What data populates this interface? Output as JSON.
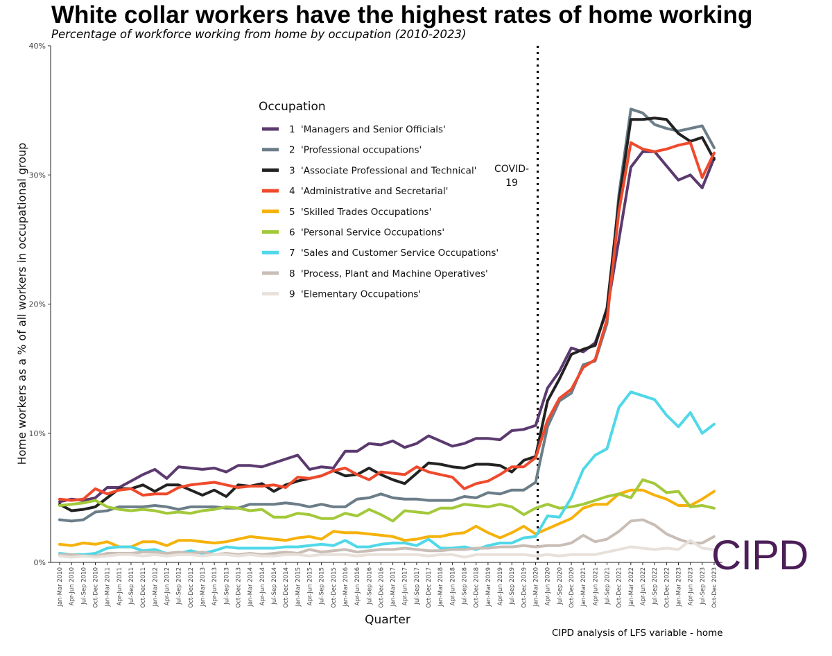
{
  "chart_data": {
    "type": "line",
    "title": "White collar workers have the highest rates of home working",
    "subtitle": "Percentage of workforce working from home by occupation (2010-2023)",
    "xlabel": "Quarter",
    "ylabel": "Home workers as a % of all workers in occupational group",
    "ylim": [
      0,
      40
    ],
    "yticks": [
      0,
      10,
      20,
      30,
      40
    ],
    "yticks_labels": [
      "0%",
      "10%",
      "20%",
      "30%",
      "40%"
    ],
    "source": "CIPD analysis of LFS variable - home",
    "logo": "CIPD",
    "legend_title": "Occupation",
    "legend_position": "upper-center",
    "annotation": {
      "lines": [
        "COVID-",
        "19"
      ],
      "x_index": 40
    },
    "x": [
      "Jan-Mar 2010",
      "Apr-Jun 2010",
      "Jul-Sep 2010",
      "Oct-Dec 2010",
      "Jan-Mar 2011",
      "Apr-Jun 2011",
      "Jul-Sep 2011",
      "Oct-Dec 2011",
      "Jan-Mar 2012",
      "Apr-Jun 2012",
      "Jul-Sep 2012",
      "Oct-Dec 2012",
      "Jan-Mar 2013",
      "Apr-Jun 2013",
      "Jul-Sep 2013",
      "Oct-Dec 2013",
      "Jan-Mar 2014",
      "Apr-Jun 2014",
      "Jul-Sep 2014",
      "Oct-Dec 2014",
      "Jan-Mar 2015",
      "Apr-Jun 2015",
      "Jul-Sep 2015",
      "Oct-Dec 2015",
      "Jan-Mar 2016",
      "Apr-Jun 2016",
      "Jul-Sep 2016",
      "Oct-Dec 2016",
      "Jan-Mar 2017",
      "Apr-Jun 2017",
      "Jul-Sep 2017",
      "Oct-Dec 2017",
      "Jan-Mar 2018",
      "Apr-Jun 2018",
      "Jul-Sep 2018",
      "Oct-Dec 2018",
      "Jan-Mar 2019",
      "Apr-Jun 2019",
      "Jul-Sep 2019",
      "Oct-Dec 2019",
      "Jan-Mar 2020",
      "Apr-Jun 2020",
      "Jul-Sep 2020",
      "Oct-Dec 2020",
      "Jan-Mar 2021",
      "Apr-Jun 2021",
      "Jul-Sep 2021",
      "Oct-Dec 2021",
      "Jan-Mar 2022",
      "Apr-Jun 2022",
      "Jul-Sep 2022",
      "Oct-Dec 2022",
      "Jan-Mar 2023",
      "Apr-Jun 2023",
      "Jul-Sep 2023",
      "Oct-Dec 2023"
    ],
    "x_tick_labels": [
      "Jan-Mar 2010",
      "Apr-Jun 2010",
      "Jul-Sep 2010",
      "Oct-Dec 2010",
      "Jan-Mar 2011",
      "Apr-Jun 2011",
      "Jul-Sep 2011",
      "Oct-Dec 2011",
      "Jan-Mar 2012",
      "Apr-Jun 2012",
      "Jul-Sep 2012",
      "Oct-Dec 2012",
      "Jan-Mar 2013",
      "Apr-Jun 2013",
      "Jul-Sep 2013",
      "Oct-Dec 2013",
      "Jan-Mar 2014",
      "Apr-Jun 2014",
      "Jul-Sep 2014",
      "Oct-Dec 2014",
      "Jan-Mar 2015",
      "Apr-Jun 2015",
      "Jul-Sep 2015",
      "Oct-Dec 2015",
      "Jan-Mar 2016",
      "Apr-Jun 2016",
      "Jul-Sep 2016",
      "Oct-Dec 2016",
      "Jan-Mar 2017",
      "Apr-Jun 2017",
      "Jul-Sep 2017",
      "Oct-Dec 2017",
      "Jan-Mar 2018",
      "Apr-Jun 2018",
      "Jul-Sep 2018",
      "Oct-Dec 2018",
      "Jan-Mar 2019",
      "Apr-Jun 2019",
      "Jul-Sep 2019",
      "Oct-Dec 2019",
      "Jan-Mar 2020",
      "Apr-Jun 2020",
      "Jul-Sep 2020",
      "Oct-Dec 2020",
      "Jan-Mar 2021",
      "Apr-Jun 2021",
      "Jul-Sep 2021",
      "Oct-Dec 2021",
      "Jan-Mar 2022",
      "Apr-Jun 2022",
      "Jul-Sep 2022",
      "Oct-Dec 2022",
      "Jan-Mar 2023",
      "Apr-Jun 2023",
      "Jul-Sep 2023",
      "Oct-Dec 2023"
    ],
    "series": [
      {
        "legend_num": "1",
        "name": "'Managers and Senior Officials'",
        "color": "#5b3a6f",
        "values": [
          4.7,
          4.9,
          4.8,
          5.0,
          5.8,
          5.8,
          6.3,
          6.8,
          7.2,
          6.5,
          7.4,
          7.3,
          7.2,
          7.3,
          7.0,
          7.5,
          7.5,
          7.4,
          7.7,
          8.0,
          8.3,
          7.2,
          7.4,
          7.3,
          8.6,
          8.6,
          9.2,
          9.1,
          9.4,
          8.9,
          9.2,
          9.8,
          9.4,
          9.0,
          9.2,
          9.6,
          9.6,
          9.5,
          10.2,
          10.3,
          10.6,
          13.5,
          14.8,
          16.6,
          16.3,
          17.0,
          19.5,
          25.0,
          30.6,
          31.8,
          31.8,
          30.7,
          29.6,
          30.0,
          29.0,
          31.3
        ]
      },
      {
        "legend_num": "2",
        "name": "'Professional occupations'",
        "color": "#6b7d88",
        "values": [
          3.3,
          3.2,
          3.3,
          3.9,
          4.0,
          4.3,
          4.3,
          4.3,
          4.4,
          4.3,
          4.1,
          4.3,
          4.3,
          4.3,
          4.2,
          4.2,
          4.5,
          4.5,
          4.5,
          4.6,
          4.5,
          4.3,
          4.5,
          4.3,
          4.3,
          4.9,
          5.0,
          5.3,
          5.0,
          4.9,
          4.9,
          4.8,
          4.8,
          4.8,
          5.1,
          5.0,
          5.4,
          5.3,
          5.6,
          5.6,
          6.2,
          10.5,
          12.5,
          13.1,
          15.3,
          15.6,
          18.5,
          28.5,
          35.1,
          34.8,
          33.9,
          33.6,
          33.4,
          33.6,
          33.8,
          32.1
        ]
      },
      {
        "legend_num": "3",
        "name": "'Associate Professional and Technical'",
        "color": "#222222",
        "values": [
          4.5,
          4.0,
          4.1,
          4.3,
          5.0,
          5.7,
          5.7,
          6.0,
          5.5,
          6.0,
          6.0,
          5.6,
          5.2,
          5.6,
          5.1,
          6.0,
          5.9,
          6.1,
          5.5,
          6.0,
          6.3,
          6.5,
          6.7,
          7.1,
          6.7,
          6.8,
          7.3,
          6.8,
          6.4,
          6.1,
          6.9,
          7.7,
          7.6,
          7.4,
          7.3,
          7.6,
          7.6,
          7.5,
          7.0,
          7.9,
          8.2,
          12.5,
          14.2,
          16.1,
          16.5,
          16.8,
          19.7,
          28.0,
          34.3,
          34.3,
          34.4,
          34.3,
          33.2,
          32.6,
          32.9,
          31.2
        ]
      },
      {
        "legend_num": "4",
        "name": "'Administrative and Secretarial'",
        "color": "#ef4a2d",
        "values": [
          4.9,
          4.8,
          4.9,
          5.7,
          5.3,
          5.6,
          5.7,
          5.2,
          5.3,
          5.3,
          5.8,
          6.0,
          6.1,
          6.2,
          6.0,
          5.8,
          5.9,
          5.9,
          6.0,
          5.8,
          6.6,
          6.5,
          6.7,
          7.1,
          7.3,
          6.8,
          6.4,
          7.0,
          6.9,
          6.8,
          7.4,
          7.0,
          6.8,
          6.6,
          5.7,
          6.1,
          6.3,
          6.8,
          7.4,
          7.4,
          8.1,
          11.0,
          12.7,
          13.4,
          15.1,
          15.7,
          18.8,
          27.2,
          32.5,
          32.0,
          31.8,
          32.0,
          32.3,
          32.5,
          29.8,
          31.7
        ]
      },
      {
        "legend_num": "5",
        "name": "'Skilled Trades Occupations'",
        "color": "#f6b20a",
        "values": [
          1.4,
          1.3,
          1.5,
          1.4,
          1.6,
          1.2,
          1.2,
          1.6,
          1.6,
          1.3,
          1.7,
          1.7,
          1.6,
          1.5,
          1.6,
          1.8,
          2.0,
          1.9,
          1.8,
          1.7,
          1.9,
          2.0,
          1.8,
          2.4,
          2.3,
          2.3,
          2.2,
          2.1,
          2.0,
          1.7,
          1.8,
          2.0,
          2.0,
          2.2,
          2.3,
          2.8,
          2.3,
          1.9,
          2.3,
          2.8,
          2.2,
          2.6,
          3.0,
          3.4,
          4.2,
          4.5,
          4.5,
          5.3,
          5.6,
          5.6,
          5.2,
          4.9,
          4.4,
          4.4,
          4.9,
          5.5
        ]
      },
      {
        "legend_num": "6",
        "name": "'Personal Service Occupations'",
        "color": "#a3c93a",
        "values": [
          4.4,
          4.5,
          4.6,
          4.8,
          4.3,
          4.1,
          4.0,
          4.1,
          4.0,
          3.8,
          3.9,
          3.8,
          4.0,
          4.1,
          4.3,
          4.2,
          4.0,
          4.1,
          3.5,
          3.5,
          3.8,
          3.7,
          3.4,
          3.4,
          3.8,
          3.6,
          4.1,
          3.7,
          3.2,
          4.0,
          3.9,
          3.8,
          4.2,
          4.2,
          4.5,
          4.4,
          4.3,
          4.5,
          4.3,
          3.7,
          4.2,
          4.5,
          4.2,
          4.3,
          4.5,
          4.8,
          5.1,
          5.3,
          5.0,
          6.4,
          6.1,
          5.4,
          5.5,
          4.3,
          4.4,
          4.2
        ]
      },
      {
        "legend_num": "7",
        "name": "'Sales and Customer Service Occupations'",
        "color": "#4fd8e8",
        "values": [
          0.7,
          0.6,
          0.6,
          0.7,
          1.1,
          1.2,
          1.2,
          0.9,
          1.0,
          0.7,
          0.7,
          0.9,
          0.7,
          0.9,
          1.2,
          1.1,
          1.1,
          1.1,
          1.1,
          1.2,
          1.2,
          1.3,
          1.4,
          1.3,
          1.7,
          1.2,
          1.2,
          1.4,
          1.5,
          1.5,
          1.3,
          1.8,
          1.1,
          1.1,
          1.2,
          1.0,
          1.3,
          1.5,
          1.5,
          1.9,
          2.0,
          3.6,
          3.5,
          5.0,
          7.2,
          8.3,
          8.8,
          12.0,
          13.2,
          12.9,
          12.6,
          11.4,
          10.5,
          11.6,
          10.0,
          10.7
        ]
      },
      {
        "legend_num": "8",
        "name": "'Process, Plant and Machine Operatives'",
        "color": "#c9beb6",
        "values": [
          0.6,
          0.6,
          0.5,
          0.5,
          0.7,
          0.7,
          0.7,
          0.8,
          0.8,
          0.7,
          0.8,
          0.7,
          0.8,
          0.6,
          0.7,
          0.6,
          0.7,
          0.6,
          0.7,
          0.8,
          0.7,
          1.0,
          0.8,
          0.9,
          1.0,
          0.8,
          0.9,
          1.0,
          1.0,
          1.1,
          1.0,
          0.9,
          0.9,
          1.0,
          1.0,
          1.1,
          1.1,
          1.2,
          1.2,
          1.3,
          1.2,
          1.3,
          1.3,
          1.5,
          2.1,
          1.6,
          1.8,
          2.4,
          3.2,
          3.3,
          2.9,
          2.2,
          1.8,
          1.5,
          1.5,
          2.0
        ]
      },
      {
        "legend_num": "9",
        "name": "'Elementary Occupations'",
        "color": "#e8e0da",
        "values": [
          0.5,
          0.4,
          0.5,
          0.4,
          0.5,
          0.6,
          0.6,
          0.5,
          0.6,
          0.5,
          0.6,
          0.6,
          0.5,
          0.6,
          0.6,
          0.5,
          0.6,
          0.5,
          0.5,
          0.6,
          0.6,
          0.5,
          0.6,
          0.6,
          0.6,
          0.5,
          0.6,
          0.6,
          0.6,
          0.6,
          0.6,
          0.5,
          0.6,
          0.6,
          0.4,
          0.6,
          0.6,
          0.6,
          0.6,
          0.6,
          0.5,
          0.6,
          0.5,
          0.6,
          0.6,
          0.6,
          0.8,
          1.0,
          1.2,
          1.1,
          1.0,
          1.1,
          1.0,
          1.7,
          1.1,
          1.0
        ]
      }
    ]
  }
}
